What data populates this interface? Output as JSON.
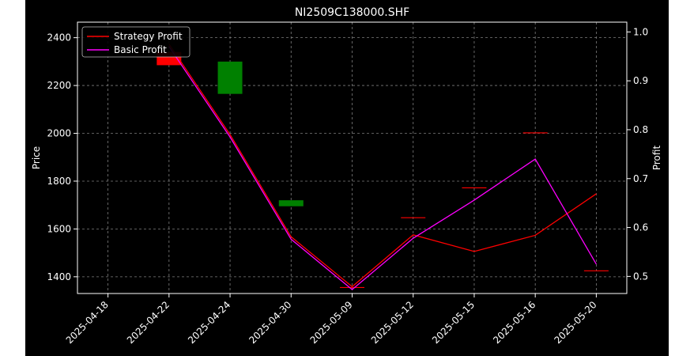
{
  "chart_data": {
    "type": "candlestick+line",
    "title": "NI2509C138000.SHF",
    "ylabel_left": "Price",
    "ylabel_right": "Profit",
    "xlabel": "",
    "categories": [
      "2025-04-18",
      "2025-04-22",
      "2025-04-24",
      "2025-04-30",
      "2025-05-09",
      "2025-05-12",
      "2025-05-15",
      "2025-05-16",
      "2025-05-20"
    ],
    "ylim_left": [
      1330,
      2465
    ],
    "yticks_left": [
      1400,
      1600,
      1800,
      2000,
      2200,
      2400
    ],
    "ylim_right": [
      0.465,
      1.02
    ],
    "yticks_right": [
      0.5,
      0.6,
      0.7,
      0.8,
      0.9,
      1.0
    ],
    "candles": [
      {
        "x": "2025-04-22",
        "open": 2340,
        "close": 2285,
        "color": "#ff0000"
      },
      {
        "x": "2025-04-24",
        "open": 2165,
        "close": 2300,
        "color": "#008000"
      },
      {
        "x": "2025-04-30",
        "open": 1695,
        "close": 1720,
        "color": "#008000"
      },
      {
        "x": "2025-05-09",
        "open": 1355,
        "close": 1355,
        "color": "#ff0000"
      },
      {
        "x": "2025-05-12",
        "open": 1647,
        "close": 1647,
        "color": "#ff0000"
      },
      {
        "x": "2025-05-15",
        "open": 1772,
        "close": 1772,
        "color": "#ff0000"
      },
      {
        "x": "2025-05-16",
        "open": 2002,
        "close": 2002,
        "color": "#ff0000"
      },
      {
        "x": "2025-05-20",
        "open": 1425,
        "close": 1425,
        "color": "#ff0000"
      }
    ],
    "series": [
      {
        "name": "Strategy Profit",
        "color": "#ff0000",
        "x": [
          "2025-04-22",
          "2025-04-24",
          "2025-04-30",
          "2025-05-09",
          "2025-05-12",
          "2025-05-15",
          "2025-05-16",
          "2025-05-20"
        ],
        "values": [
          0.975,
          0.79,
          0.581,
          0.479,
          0.585,
          0.551,
          0.584,
          0.669
        ]
      },
      {
        "name": "Basic Profit",
        "color": "#ff00ff",
        "x": [
          "2025-04-22",
          "2025-04-24",
          "2025-04-30",
          "2025-05-09",
          "2025-05-12",
          "2025-05-15",
          "2025-05-16",
          "2025-05-20"
        ],
        "values": [
          0.97,
          0.785,
          0.576,
          0.473,
          0.578,
          0.656,
          0.74,
          0.525
        ]
      }
    ],
    "grid": true,
    "legend": "top-left"
  }
}
